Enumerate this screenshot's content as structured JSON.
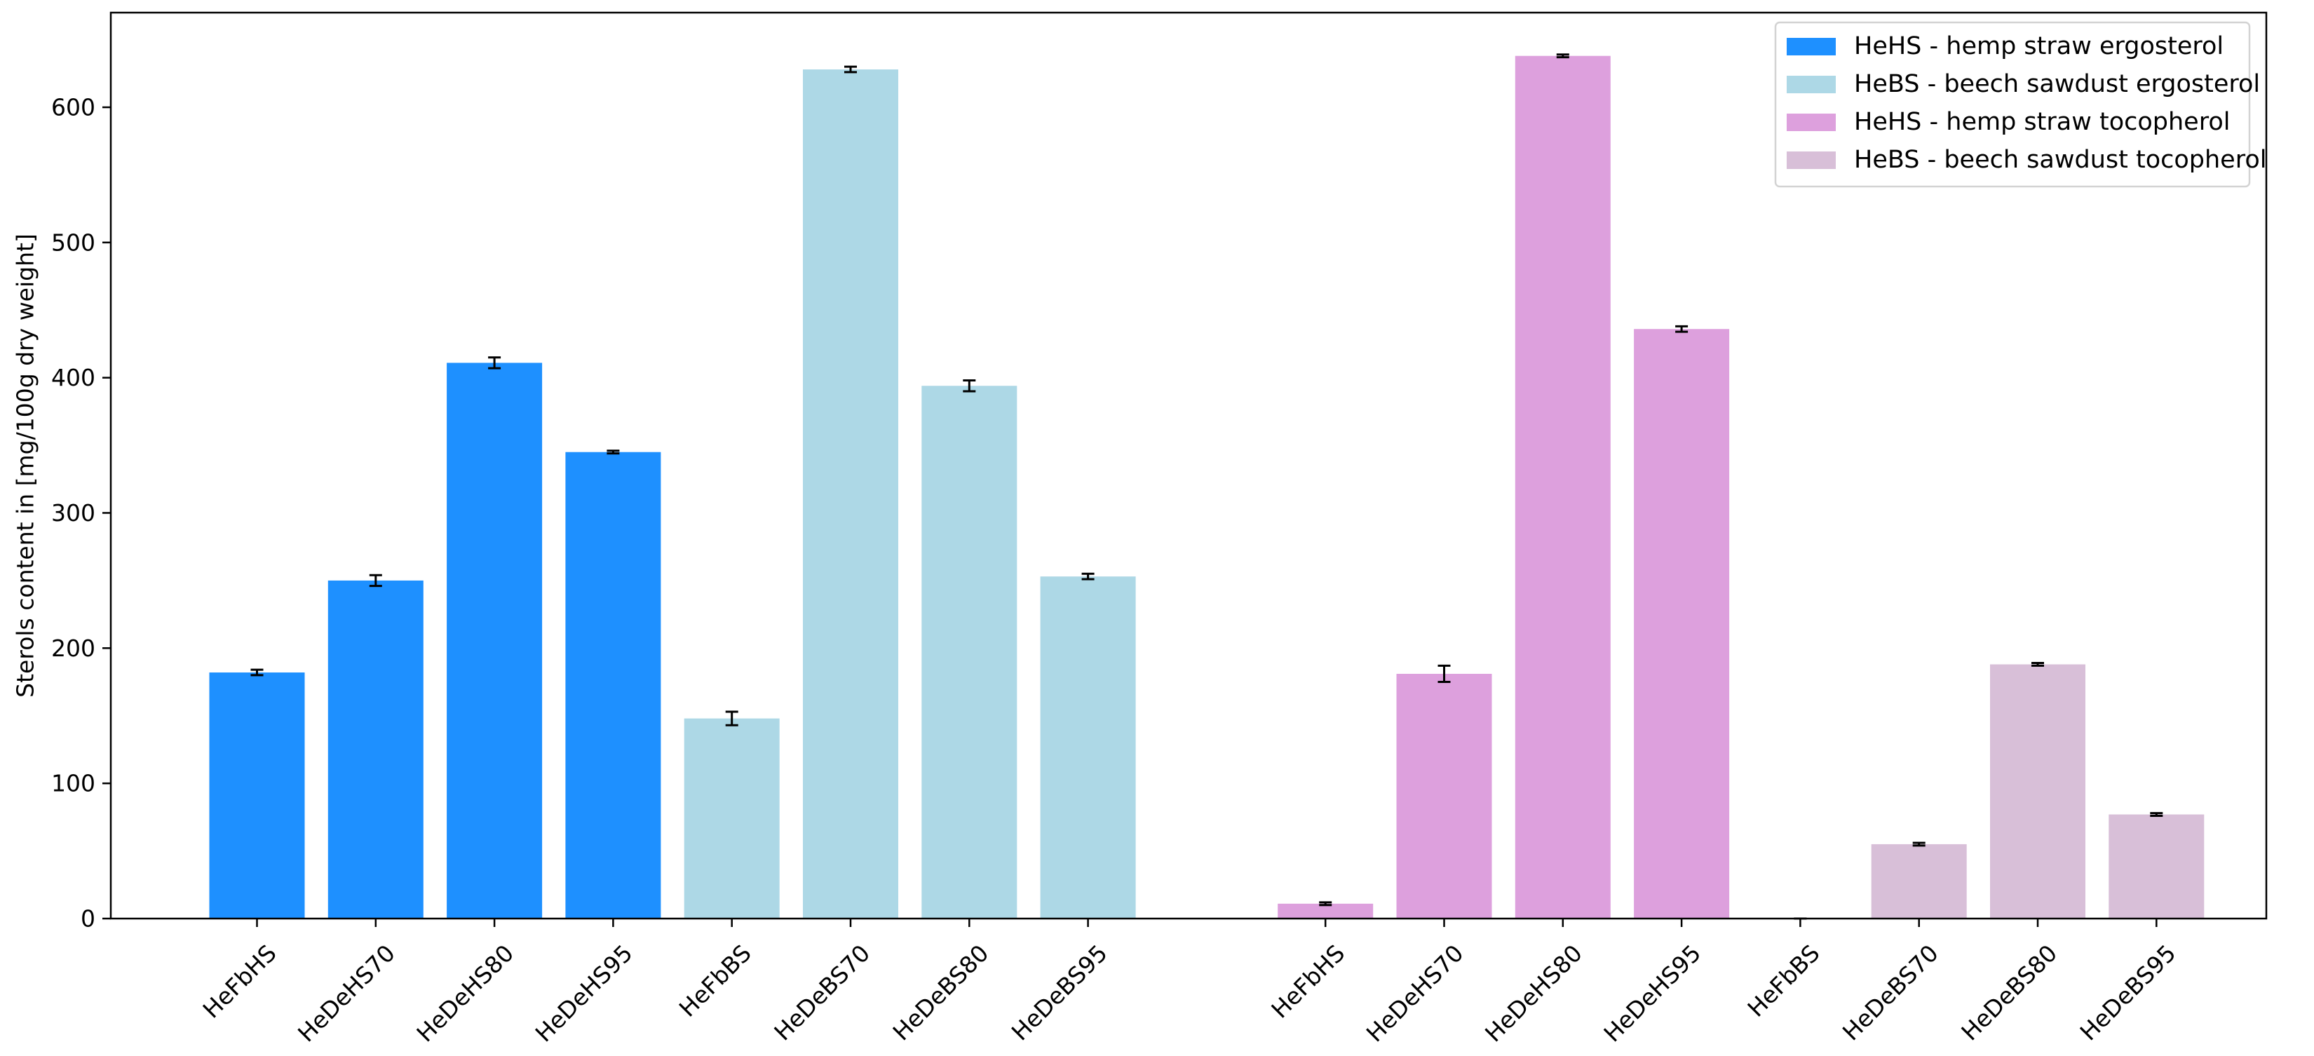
{
  "chart_data": {
    "type": "bar",
    "title": "",
    "xlabel": "",
    "ylabel": "Sterols content in [mg/100g dry weight]",
    "ylim": [
      0,
      670
    ],
    "yticks": [
      0,
      100,
      200,
      300,
      400,
      500,
      600
    ],
    "grid": false,
    "legend_position": "top-right",
    "series": [
      {
        "name": "HeHS - hemp straw ergosterol",
        "color": "#1E90FF",
        "categories": [
          "HeFbHS",
          "HeDeHS70",
          "HeDeHS80",
          "HeDeHS95"
        ],
        "values": [
          182,
          250,
          411,
          345
        ],
        "errors": [
          2,
          4,
          4,
          1
        ]
      },
      {
        "name": "HeBS - beech sawdust ergosterol",
        "color": "#ADD8E6",
        "categories": [
          "HeFbBS",
          "HeDeBS70",
          "HeDeBS80",
          "HeDeBS95"
        ],
        "values": [
          148,
          628,
          394,
          253
        ],
        "errors": [
          5,
          2,
          4,
          2
        ]
      },
      {
        "name": "HeHS - hemp straw tocopherol",
        "color": "#DDA0DD",
        "categories": [
          "HeFbHS",
          "HeDeHS70",
          "HeDeHS80",
          "HeDeHS95"
        ],
        "values": [
          11,
          181,
          638,
          436
        ],
        "errors": [
          1,
          6,
          1,
          2
        ]
      },
      {
        "name": "HeBS - beech sawdust tocopherol",
        "color": "#D8BFD8",
        "categories": [
          "HeFbBS",
          "HeDeBS70",
          "HeDeBS80",
          "HeDeBS95"
        ],
        "values": [
          0,
          55,
          188,
          77
        ],
        "errors": [
          0,
          1,
          1,
          1
        ]
      }
    ]
  }
}
